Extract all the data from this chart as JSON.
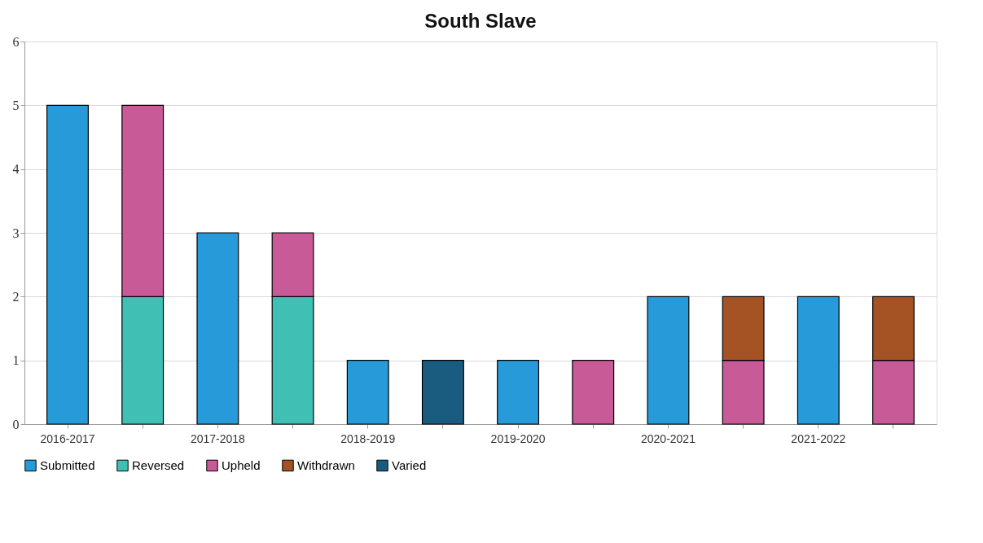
{
  "chart_data": {
    "type": "bar",
    "title": "South Slave",
    "stacked": true,
    "categories": [
      "2016-2017",
      null,
      "2017-2018",
      null,
      "2018-2019",
      null,
      "2019-2020",
      null,
      "2020-2021",
      null,
      "2021-2022",
      null
    ],
    "series": [
      {
        "name": "Submitted",
        "color": "#279bd9",
        "values": [
          5,
          null,
          3,
          null,
          1,
          null,
          1,
          null,
          2,
          null,
          2,
          null
        ]
      },
      {
        "name": "Reversed",
        "color": "#40c0b5",
        "values": [
          null,
          2,
          null,
          2,
          null,
          null,
          null,
          null,
          null,
          null,
          null,
          null
        ]
      },
      {
        "name": "Upheld",
        "color": "#c85a98",
        "values": [
          null,
          3,
          null,
          1,
          null,
          null,
          null,
          1,
          null,
          1,
          null,
          1
        ]
      },
      {
        "name": "Withdrawn",
        "color": "#a55225",
        "values": [
          null,
          null,
          null,
          null,
          null,
          null,
          null,
          null,
          null,
          1,
          null,
          1
        ]
      },
      {
        "name": "Varied",
        "color": "#1a5c80",
        "values": [
          null,
          null,
          null,
          null,
          null,
          1,
          null,
          null,
          null,
          null,
          null,
          null
        ]
      }
    ],
    "ylim": [
      0,
      6
    ],
    "yticks": [
      0,
      1,
      2,
      3,
      4,
      5,
      6
    ],
    "grid": "y",
    "legend": "bottom"
  }
}
